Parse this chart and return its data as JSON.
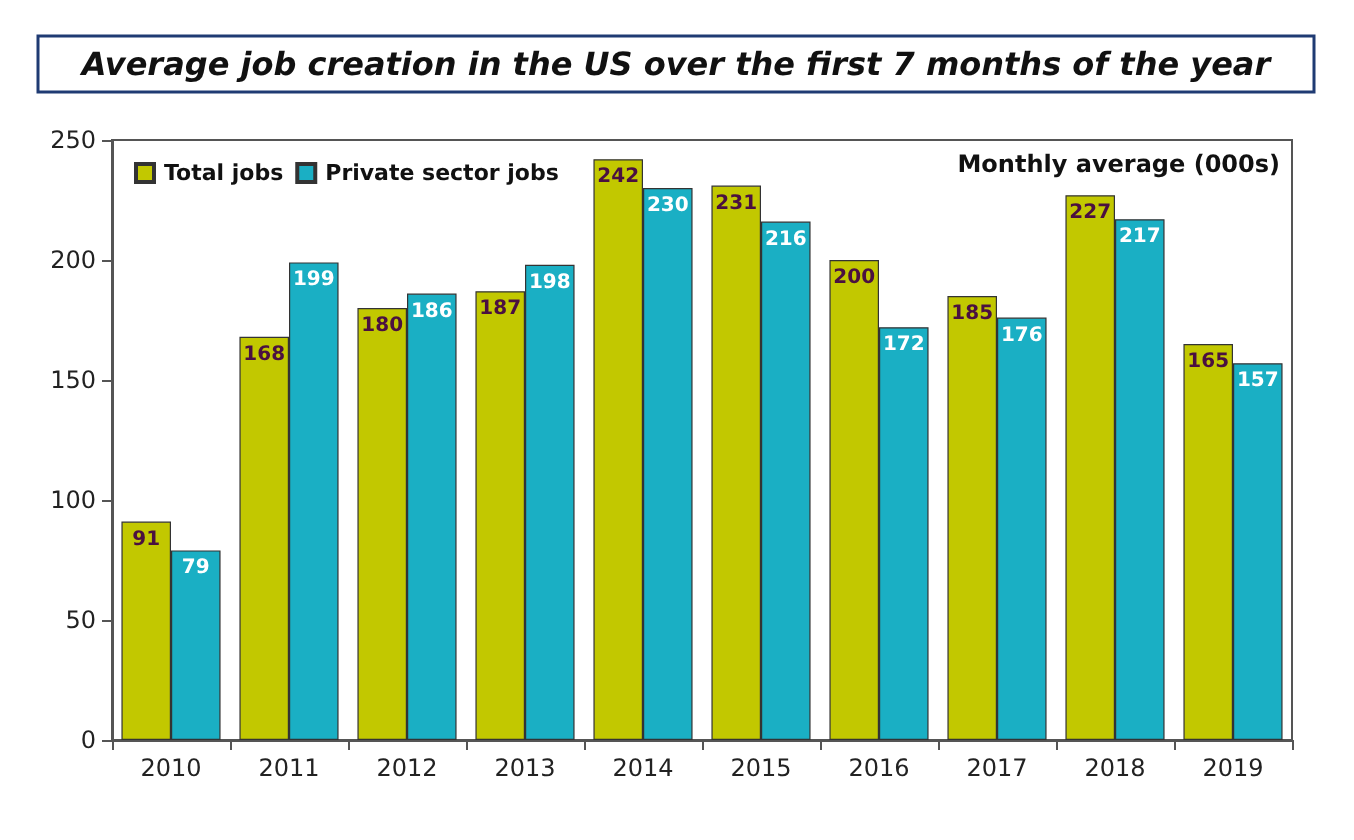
{
  "chart_data": {
    "type": "bar",
    "title": "Average job creation in the US over the first 7 months of the year",
    "categories": [
      "2010",
      "2011",
      "2012",
      "2013",
      "2014",
      "2015",
      "2016",
      "2017",
      "2018",
      "2019"
    ],
    "series": [
      {
        "name": "Total jobs",
        "color": "#c2c800",
        "values": [
          91,
          168,
          180,
          187,
          242,
          231,
          200,
          185,
          227,
          165
        ]
      },
      {
        "name": "Private sector jobs",
        "color": "#1aafc4",
        "values": [
          79,
          199,
          186,
          198,
          230,
          216,
          172,
          176,
          217,
          157
        ]
      }
    ],
    "ylim": [
      0,
      250
    ],
    "yticks": [
      0,
      50,
      100,
      150,
      200,
      250
    ],
    "grid": false,
    "legend": "top left",
    "data_labels": true,
    "annotations": [
      "Monthly average (000s)"
    ]
  }
}
